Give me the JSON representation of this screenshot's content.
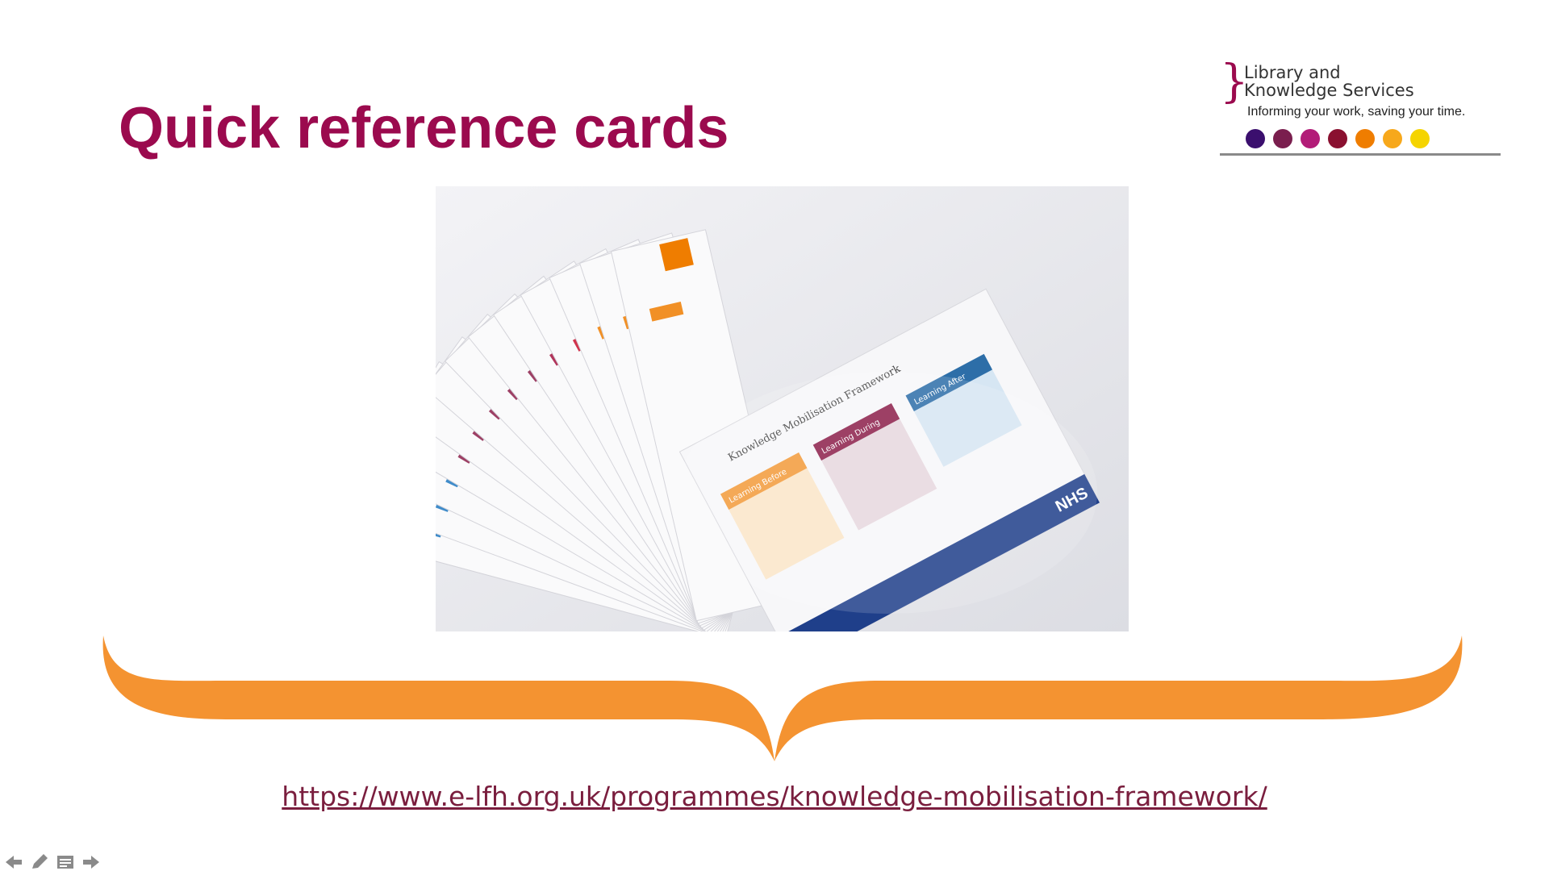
{
  "slide": {
    "title": "Quick reference cards",
    "link_text": "https://www.e-lfh.org.uk/programmes/knowledge-mobilisation-framework/"
  },
  "logo": {
    "line1": "Library and",
    "line2": "Knowledge Services",
    "tagline": "Informing your work, saving your time.",
    "dot_colors": [
      "#3b0f6e",
      "#7a1e4e",
      "#b21c78",
      "#8a1030",
      "#ef7d00",
      "#f7a81b",
      "#f5d400"
    ]
  },
  "colors": {
    "title": "#9b0a4e",
    "brace": "#f49331",
    "link": "#7a1e3e"
  },
  "photo": {
    "card_labels": [
      "Knowledge Mobilisation Framework",
      "Learning Before",
      "Learning During",
      "Learning After"
    ],
    "nhs_mark": "NHS"
  },
  "nav": {
    "icons": [
      "left-arrow-icon",
      "pen-icon",
      "notes-icon",
      "right-arrow-icon"
    ]
  }
}
